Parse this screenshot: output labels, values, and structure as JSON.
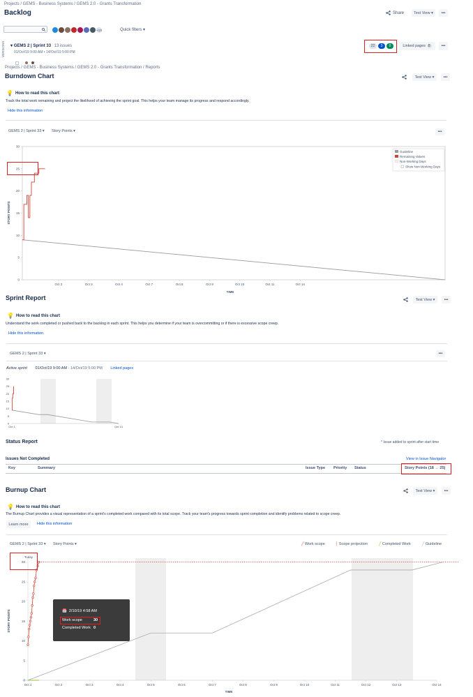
{
  "backlog": {
    "breadcrumb": "Projects  /  GEMS - Business Systems  /  GEMS 2.0 - Grants Transformation",
    "title": "Backlog",
    "share_label": "Share",
    "view_label": "Test View",
    "quick_filters_label": "Quick filters",
    "more_avatars": "+13",
    "sprint_name": "GEMS 2 | Sprint 33",
    "sprint_issues": "13 issues",
    "sprint_dates": "01/Oct/19 9:00 AM  •  14/Oct/19 5:00 PM",
    "side_label": "VERSIONS",
    "status_counts": [
      "22",
      "3",
      "0"
    ],
    "linked_pages_label": "Linked pages",
    "linked_pages_count": "8"
  },
  "burndown": {
    "breadcrumb": "Projects  /  GEMS - Business Systems  /  GEMS 2.0 - Grants Transformation  /  Reports",
    "title": "Burndown Chart",
    "view_label": "Test View",
    "howto_title": "How to read this chart",
    "howto_text": "Track the total work remaining and project the likelihood of achieving the sprint goal. This helps your team manage its progress and respond accordingly.",
    "hide_label": "Hide this information",
    "sprint_select": "GEMS 2 | Sprint 33",
    "estimate_select": "Story Points",
    "legend": [
      "Guideline",
      "Remaining Values",
      "Non-Working Days",
      "Show Non-Working Days"
    ]
  },
  "sprint_report": {
    "title": "Sprint Report",
    "view_label": "Test View",
    "howto_title": "How to read this chart",
    "howto_text": "Understand the work completed or pushed back to the backlog in each sprint. This helps you determine if your team is overcommitting or if there is excessive scope creep.",
    "hide_label": "Hide this information",
    "sprint_select": "GEMS 2 | Sprint 33",
    "active_label": "Active sprint",
    "dates_start": "01/Oct/19 9:00 AM",
    "dates_end": "- 14/Oct/19 5:00 PM",
    "linked_pages": "Linked pages"
  },
  "status_report": {
    "title": "Status Report",
    "note": "* Issue added to sprint after start time",
    "section": "Issues Not Completed",
    "navigator_link": "View in Issue Navigator",
    "columns": [
      "Key",
      "Summary",
      "Issue Type",
      "Priority",
      "Status",
      "Story Points (18 → 25)"
    ]
  },
  "burnup": {
    "title": "Burnup Chart",
    "view_label": "Test View",
    "howto_title": "How to read this chart",
    "howto_text": "The Burnup Chart provides a visual representation of a sprint's completed work compared with its total scope. Track your team's progress towards sprint completion and identify problems related to scope creep.",
    "learn_more": "Learn more",
    "hide_label": "Hide this information",
    "sprint_select": "GEMS 2 | Sprint 33",
    "estimate_select": "Story Points",
    "legend": [
      "Work scope",
      "Scope projection",
      "Completed Work",
      "Guideline"
    ],
    "today_label": "Today",
    "tooltip": {
      "date": "2/10/19 4:58 AM",
      "scope_label": "Work scope",
      "scope_value": "30",
      "completed_label": "Completed Work",
      "completed_value": "0"
    }
  },
  "chart_data": [
    {
      "type": "line",
      "title": "Burndown Chart",
      "xlabel": "TIME",
      "ylabel": "STORY POINTS",
      "ylim": [
        0,
        30
      ],
      "yticks": [
        0,
        5,
        10,
        15,
        20,
        25,
        30
      ],
      "xticks": [
        "Oct 2",
        "Oct 3",
        "Oct 4",
        "Oct 7",
        "Oct 8",
        "Oct 9",
        "Oct 10",
        "Oct 11",
        "Oct 14"
      ],
      "grid": false,
      "legend_position": "top-right",
      "series": [
        {
          "name": "Guideline",
          "color": "#999999",
          "points": [
            [
              0,
              9
            ],
            [
              14,
              0
            ]
          ]
        },
        {
          "name": "Remaining Values",
          "color": "#d04437",
          "points": [
            [
              0,
              9
            ],
            [
              0.05,
              17
            ],
            [
              0.1,
              17
            ],
            [
              0.15,
              19
            ],
            [
              0.2,
              14
            ],
            [
              0.25,
              19
            ],
            [
              0.3,
              22
            ],
            [
              0.35,
              22
            ],
            [
              0.4,
              24
            ],
            [
              0.5,
              24
            ],
            [
              0.55,
              25
            ],
            [
              0.75,
              25
            ]
          ]
        }
      ]
    },
    {
      "type": "line",
      "title": "",
      "ylim": [
        0,
        30
      ],
      "yticks": [
        0,
        5,
        10,
        15,
        20,
        25,
        30
      ],
      "xticks": [
        "Oct 1",
        "Oct 14"
      ],
      "series": [
        {
          "name": "Guideline",
          "color": "#999999",
          "points": [
            [
              0,
              9
            ],
            [
              3,
              6
            ],
            [
              4,
              6
            ],
            [
              9,
              1
            ],
            [
              11,
              1
            ],
            [
              12,
              0
            ]
          ]
        },
        {
          "name": "Remaining Values",
          "color": "#d04437",
          "points": [
            [
              0,
              9
            ],
            [
              0.05,
              17
            ],
            [
              0.1,
              20
            ],
            [
              0.2,
              25
            ]
          ]
        }
      ]
    },
    {
      "type": "line",
      "title": "Burnup Chart",
      "xlabel": "TIME",
      "ylabel": "STORY POINTS",
      "ylim": [
        0,
        31
      ],
      "yticks": [
        0,
        5,
        10,
        15,
        20,
        25,
        30
      ],
      "xticks": [
        "Oct 1",
        "Oct 2",
        "Oct 3",
        "Oct 4",
        "Oct 5",
        "Oct 6",
        "Oct 7",
        "Oct 8",
        "Oct 9",
        "Oct 10",
        "Oct 11",
        "Oct 12",
        "Oct 13",
        "Oct 14"
      ],
      "legend_position": "top-right",
      "series": [
        {
          "name": "Work scope",
          "color": "#d04437",
          "points": [
            [
              0,
              9
            ],
            [
              0.02,
              11
            ],
            [
              0.04,
              13
            ],
            [
              0.06,
              14
            ],
            [
              0.08,
              15
            ],
            [
              0.1,
              16
            ],
            [
              0.12,
              17
            ],
            [
              0.14,
              19
            ],
            [
              0.16,
              21
            ],
            [
              0.18,
              22
            ],
            [
              0.2,
              24
            ],
            [
              0.22,
              25
            ],
            [
              0.25,
              26
            ],
            [
              0.28,
              28
            ],
            [
              0.32,
              29
            ],
            [
              0.36,
              30
            ]
          ]
        },
        {
          "name": "Scope projection",
          "color": "#d04437",
          "points": [
            [
              0.36,
              30
            ],
            [
              14,
              30
            ]
          ]
        },
        {
          "name": "Completed Work",
          "color": "#8db600",
          "points": [
            [
              0,
              0
            ],
            [
              0.36,
              0
            ]
          ]
        },
        {
          "name": "Guideline",
          "color": "#aaaaaa",
          "points": [
            [
              0,
              0
            ],
            [
              4,
              12
            ],
            [
              6,
              12
            ],
            [
              10.5,
              28
            ],
            [
              12.5,
              28
            ],
            [
              13.5,
              30
            ]
          ]
        }
      ]
    }
  ]
}
